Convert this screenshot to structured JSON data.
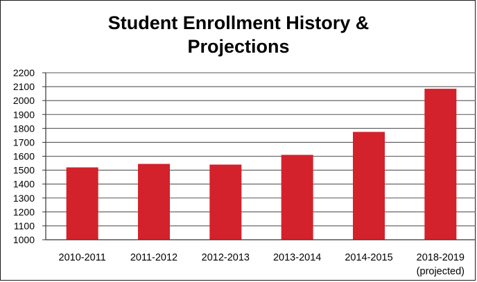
{
  "chart_data": {
    "type": "bar",
    "title_line1": "Student Enrollment History &",
    "title_line2": "Projections",
    "xlabel": "",
    "ylabel": "",
    "ylim": [
      1000,
      2200
    ],
    "ytick_step": 100,
    "categories": [
      {
        "line1": "2010-2011",
        "line2": ""
      },
      {
        "line1": "2011-2012",
        "line2": ""
      },
      {
        "line1": "2012-2013",
        "line2": ""
      },
      {
        "line1": "2013-2014",
        "line2": ""
      },
      {
        "line1": "2014-2015",
        "line2": ""
      },
      {
        "line1": "2018-2019",
        "line2": "(projected)"
      }
    ],
    "values": [
      1520,
      1545,
      1540,
      1610,
      1775,
      2085
    ],
    "grid": true,
    "legend": "none",
    "bar_color": "#d3222b"
  }
}
